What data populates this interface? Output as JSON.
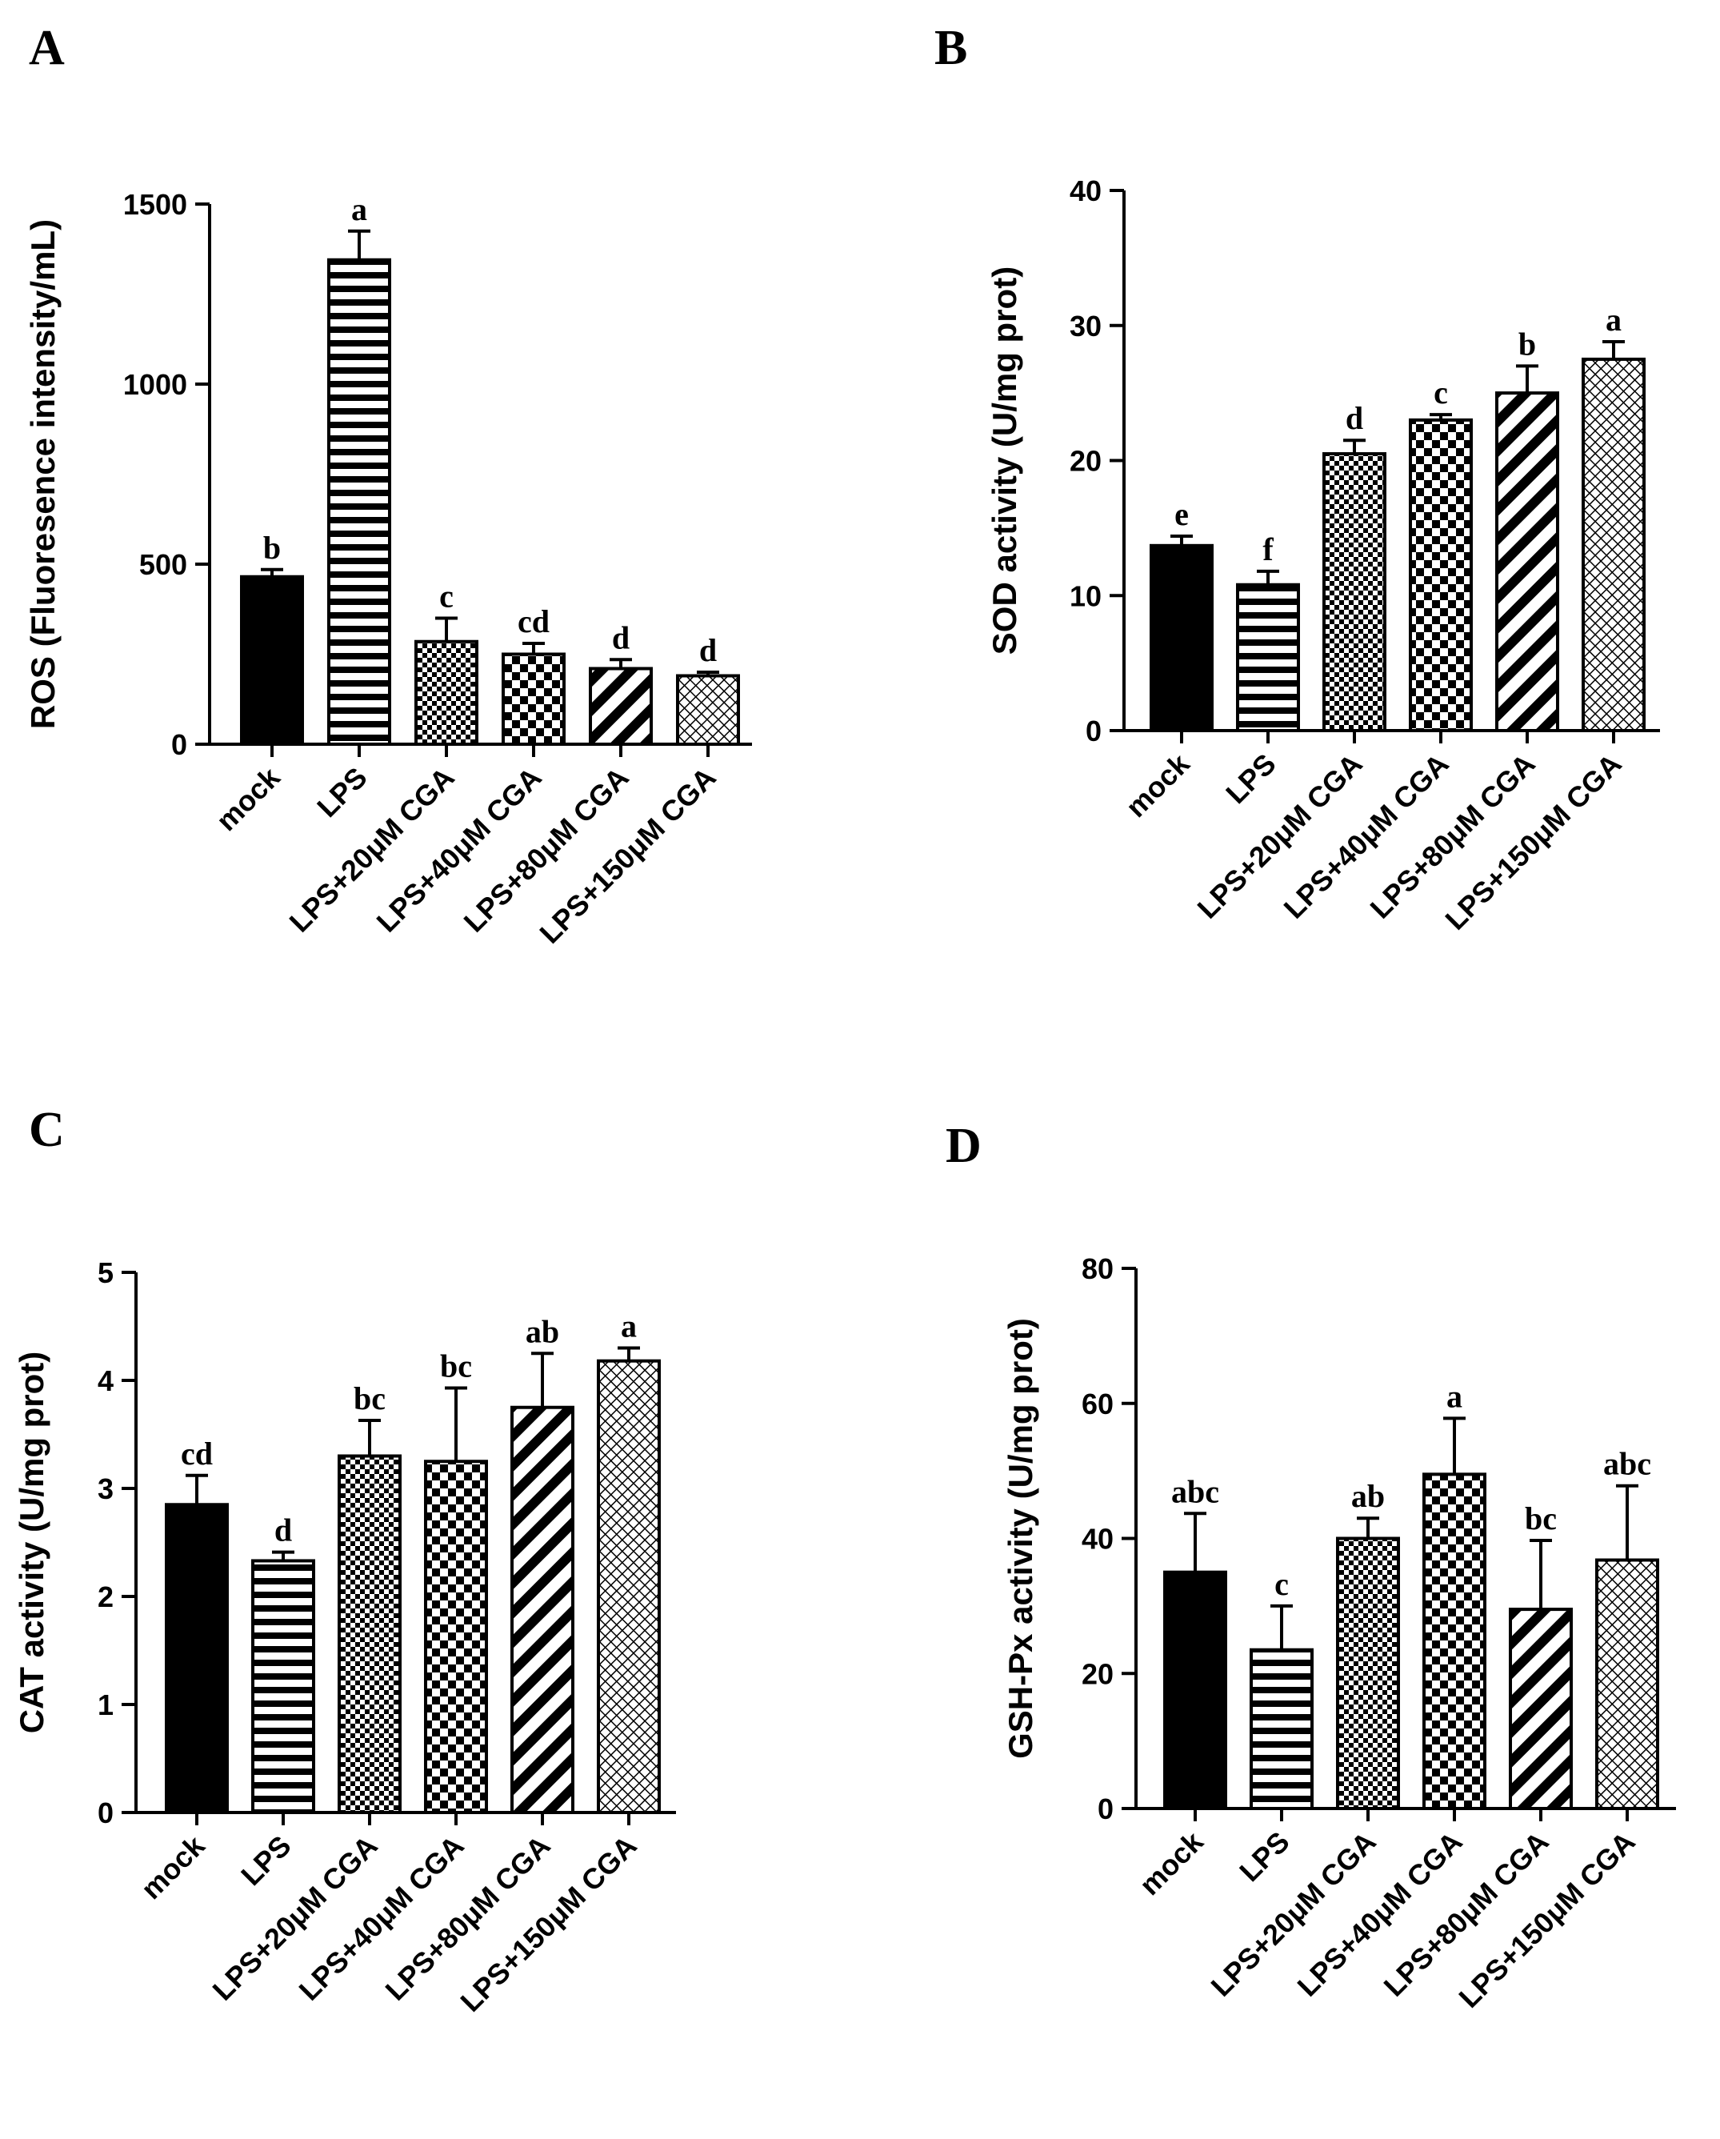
{
  "figure": {
    "patterns": {
      "mock": "solid",
      "LPS": "horizontal",
      "LPS+20μM CGA": "fine-check",
      "LPS+40μM CGA": "check",
      "LPS+80μM CGA": "diagonal",
      "LPS+150μM CGA": "crosshatch"
    },
    "bar_color": "#000000"
  },
  "chart_data": [
    {
      "panel": "A",
      "type": "bar",
      "ylabel": "ROS (Fluoresence intensity/mL)",
      "ylim": [
        0,
        1500
      ],
      "yticks": [
        0,
        500,
        1000,
        1500
      ],
      "categories": [
        "mock",
        "LPS",
        "LPS+20μM CGA",
        "LPS+40μM CGA",
        "LPS+80μM CGA",
        "LPS+150μM CGA"
      ],
      "values": [
        465,
        1345,
        285,
        250,
        210,
        190
      ],
      "errors": [
        20,
        80,
        65,
        30,
        25,
        10
      ],
      "significance": [
        "b",
        "a",
        "c",
        "cd",
        "d",
        "d"
      ]
    },
    {
      "panel": "B",
      "type": "bar",
      "ylabel": "SOD activity (U/mg prot)",
      "ylim": [
        0,
        40
      ],
      "yticks": [
        0,
        10,
        20,
        30,
        40
      ],
      "categories": [
        "mock",
        "LPS",
        "LPS+20μM CGA",
        "LPS+40μM CGA",
        "LPS+80μM CGA",
        "LPS+150μM CGA"
      ],
      "values": [
        13.7,
        10.8,
        20.5,
        23.0,
        25.0,
        27.5
      ],
      "errors": [
        0.7,
        1.0,
        1.0,
        0.4,
        2.0,
        1.3
      ],
      "significance": [
        "e",
        "f",
        "d",
        "c",
        "b",
        "a"
      ]
    },
    {
      "panel": "C",
      "type": "bar",
      "ylabel": "CAT activity (U/mg prot)",
      "ylim": [
        0,
        5
      ],
      "yticks": [
        0,
        1,
        2,
        3,
        4,
        5
      ],
      "categories": [
        "mock",
        "LPS",
        "LPS+20μM CGA",
        "LPS+40μM CGA",
        "LPS+80μM CGA",
        "LPS+150μM CGA"
      ],
      "values": [
        2.85,
        2.33,
        3.3,
        3.25,
        3.75,
        4.18
      ],
      "errors": [
        0.27,
        0.08,
        0.33,
        0.68,
        0.5,
        0.12
      ],
      "significance": [
        "cd",
        "d",
        "bc",
        "bc",
        "ab",
        "a"
      ]
    },
    {
      "panel": "D",
      "type": "bar",
      "ylabel": "GSH-Px activity (U/mg prot)",
      "ylim": [
        0,
        80
      ],
      "yticks": [
        0,
        20,
        40,
        60,
        80
      ],
      "categories": [
        "mock",
        "LPS",
        "LPS+20μM CGA",
        "LPS+40μM CGA",
        "LPS+80μM CGA",
        "LPS+150μM CGA"
      ],
      "values": [
        35,
        23.5,
        40,
        49.5,
        29.5,
        36.8
      ],
      "errors": [
        8.7,
        6.5,
        3,
        8.3,
        10.2,
        11
      ],
      "significance": [
        "abc",
        "c",
        "ab",
        "a",
        "bc",
        "abc"
      ]
    }
  ]
}
